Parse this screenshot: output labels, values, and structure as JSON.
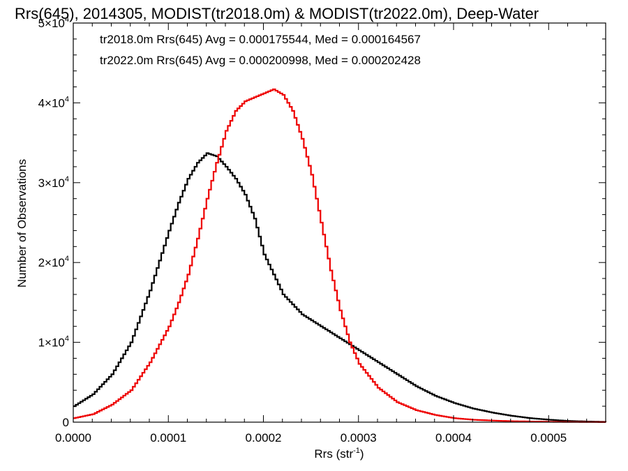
{
  "chart_data": {
    "type": "line",
    "title": "Rrs(645), 2014305, MODIST(tr2018.0m) & MODIST(tr2022.0m), Deep-Water",
    "xlabel": {
      "base": "Rrs (str",
      "sup": "-1",
      "tail": ")"
    },
    "ylabel": "Number of Observations",
    "xlim": [
      0.0,
      0.00056
    ],
    "ylim": [
      0,
      50000
    ],
    "xticks": [
      {
        "value": 0.0,
        "label": "0.0000"
      },
      {
        "value": 0.0001,
        "label": "0.0001"
      },
      {
        "value": 0.0002,
        "label": "0.0002"
      },
      {
        "value": 0.0003,
        "label": "0.0003"
      },
      {
        "value": 0.0004,
        "label": "0.0004"
      },
      {
        "value": 0.0005,
        "label": "0.0005"
      }
    ],
    "yticks": [
      {
        "value": 0,
        "base": "0",
        "sup": ""
      },
      {
        "value": 10000,
        "base": "1×10",
        "sup": "4"
      },
      {
        "value": 20000,
        "base": "2×10",
        "sup": "4"
      },
      {
        "value": 30000,
        "base": "3×10",
        "sup": "4"
      },
      {
        "value": 40000,
        "base": "4×10",
        "sup": "4"
      },
      {
        "value": 50000,
        "base": "5×10",
        "sup": "4"
      }
    ],
    "step_style": "histogram",
    "annotations": [
      {
        "text": "tr2018.0m Rrs(645) Avg = 0.000175544, Med = 0.000164567",
        "color": "#000000"
      },
      {
        "text": "tr2022.0m Rrs(645) Avg = 0.000200998, Med = 0.000202428",
        "color": "#ee0000"
      }
    ],
    "series": [
      {
        "color": "#000000",
        "x": [
          0.0,
          2e-05,
          4e-05,
          6e-05,
          8e-05,
          0.0001,
          0.00011,
          0.00012,
          0.00013,
          0.00014,
          0.00015,
          0.00016,
          0.00017,
          0.00018,
          0.00019,
          0.0002,
          0.00022,
          0.00024,
          0.00026,
          0.00028,
          0.0003,
          0.00032,
          0.00034,
          0.00036,
          0.00038,
          0.0004,
          0.00042,
          0.00044,
          0.00046,
          0.00048,
          0.0005,
          0.00052,
          0.00054,
          0.00056
        ],
        "y": [
          2000,
          3500,
          6000,
          10000,
          16500,
          24000,
          27500,
          30500,
          32500,
          33700,
          33300,
          32000,
          30500,
          28500,
          25500,
          21000,
          16000,
          13500,
          12000,
          10500,
          9000,
          7500,
          6000,
          4500,
          3300,
          2400,
          1700,
          1200,
          800,
          500,
          300,
          150,
          80,
          30
        ]
      },
      {
        "color": "#ee0000",
        "x": [
          0.0,
          2e-05,
          4e-05,
          6e-05,
          8e-05,
          0.0001,
          0.00011,
          0.00012,
          0.00013,
          0.00014,
          0.00015,
          0.00016,
          0.00017,
          0.00018,
          0.00019,
          0.0002,
          0.00021,
          0.00022,
          0.00023,
          0.00024,
          0.00025,
          0.00026,
          0.00027,
          0.00028,
          0.00029,
          0.0003,
          0.00032,
          0.00034,
          0.00036,
          0.00038,
          0.0004,
          0.00042,
          0.00044,
          0.00046,
          0.00048,
          0.0005,
          0.00052,
          0.00054,
          0.00056
        ],
        "y": [
          500,
          1000,
          2200,
          4000,
          7500,
          12000,
          15000,
          18500,
          23000,
          28000,
          32500,
          36500,
          39000,
          40200,
          40700,
          41200,
          41700,
          41000,
          39000,
          35500,
          31000,
          25000,
          19000,
          14000,
          10000,
          7300,
          4300,
          2500,
          1500,
          900,
          500,
          300,
          200,
          120,
          80,
          50,
          30,
          20,
          10
        ]
      }
    ]
  }
}
